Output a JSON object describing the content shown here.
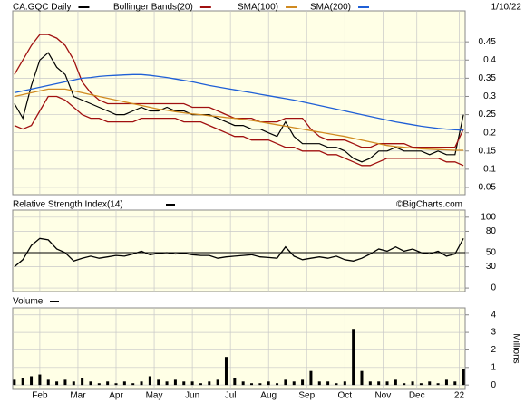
{
  "chart_data": [
    {
      "type": "line",
      "date": "1/10/22",
      "source": "©BigCharts.com",
      "ylim": [
        0.03,
        0.535
      ],
      "yticks": [
        0.05,
        0.1,
        0.15,
        0.2,
        0.25,
        0.3,
        0.35,
        0.4,
        0.45
      ],
      "grid": true,
      "background": "#ffffe6",
      "series": [
        {
          "name": "CA:GQC Daily",
          "color": "#000000",
          "values": [
            0.28,
            0.24,
            0.33,
            0.4,
            0.42,
            0.38,
            0.36,
            0.3,
            0.29,
            0.28,
            0.27,
            0.26,
            0.25,
            0.25,
            0.26,
            0.27,
            0.26,
            0.26,
            0.27,
            0.26,
            0.26,
            0.25,
            0.25,
            0.25,
            0.24,
            0.23,
            0.22,
            0.22,
            0.21,
            0.21,
            0.2,
            0.19,
            0.23,
            0.19,
            0.17,
            0.17,
            0.17,
            0.16,
            0.16,
            0.15,
            0.13,
            0.12,
            0.13,
            0.15,
            0.15,
            0.16,
            0.15,
            0.15,
            0.15,
            0.14,
            0.15,
            0.14,
            0.14,
            0.25
          ]
        },
        {
          "name": "Bollinger Bands(20)",
          "color": "#a01010",
          "upper": [
            0.36,
            0.4,
            0.44,
            0.47,
            0.47,
            0.46,
            0.44,
            0.4,
            0.34,
            0.31,
            0.29,
            0.28,
            0.28,
            0.28,
            0.28,
            0.28,
            0.28,
            0.28,
            0.28,
            0.28,
            0.28,
            0.27,
            0.27,
            0.27,
            0.26,
            0.25,
            0.24,
            0.24,
            0.24,
            0.23,
            0.23,
            0.23,
            0.24,
            0.24,
            0.24,
            0.21,
            0.19,
            0.18,
            0.18,
            0.18,
            0.17,
            0.16,
            0.16,
            0.17,
            0.17,
            0.17,
            0.17,
            0.16,
            0.16,
            0.16,
            0.16,
            0.16,
            0.16,
            0.21
          ],
          "lower": [
            0.22,
            0.21,
            0.22,
            0.26,
            0.3,
            0.3,
            0.29,
            0.27,
            0.25,
            0.24,
            0.24,
            0.23,
            0.23,
            0.23,
            0.23,
            0.24,
            0.24,
            0.24,
            0.24,
            0.24,
            0.23,
            0.23,
            0.23,
            0.22,
            0.21,
            0.2,
            0.19,
            0.19,
            0.18,
            0.18,
            0.18,
            0.17,
            0.16,
            0.16,
            0.15,
            0.15,
            0.15,
            0.14,
            0.14,
            0.13,
            0.12,
            0.11,
            0.11,
            0.12,
            0.13,
            0.13,
            0.13,
            0.13,
            0.13,
            0.13,
            0.13,
            0.12,
            0.12,
            0.11
          ]
        },
        {
          "name": "SMA(100)",
          "color": "#d08a20",
          "values": [
            0.3,
            0.305,
            0.31,
            0.315,
            0.32,
            0.32,
            0.32,
            0.315,
            0.31,
            0.305,
            0.3,
            0.295,
            0.29,
            0.285,
            0.28,
            0.275,
            0.27,
            0.265,
            0.262,
            0.258,
            0.255,
            0.252,
            0.25,
            0.247,
            0.245,
            0.242,
            0.24,
            0.237,
            0.234,
            0.23,
            0.226,
            0.222,
            0.218,
            0.214,
            0.21,
            0.206,
            0.202,
            0.198,
            0.194,
            0.19,
            0.185,
            0.18,
            0.175,
            0.17,
            0.165,
            0.162,
            0.16,
            0.158,
            0.156,
            0.155,
            0.154,
            0.153,
            0.152,
            0.152
          ]
        },
        {
          "name": "SMA(200)",
          "color": "#1f5fd6",
          "values": [
            0.31,
            0.315,
            0.32,
            0.325,
            0.33,
            0.335,
            0.34,
            0.345,
            0.35,
            0.352,
            0.355,
            0.357,
            0.358,
            0.359,
            0.36,
            0.36,
            0.358,
            0.355,
            0.352,
            0.348,
            0.344,
            0.34,
            0.335,
            0.33,
            0.326,
            0.322,
            0.318,
            0.314,
            0.31,
            0.306,
            0.302,
            0.298,
            0.294,
            0.29,
            0.285,
            0.28,
            0.275,
            0.27,
            0.265,
            0.26,
            0.255,
            0.25,
            0.245,
            0.24,
            0.235,
            0.23,
            0.226,
            0.222,
            0.218,
            0.215,
            0.212,
            0.21,
            0.208,
            0.207
          ]
        }
      ]
    },
    {
      "type": "line",
      "title": "Relative Strength Index(14)",
      "ylim": [
        -5,
        110
      ],
      "yticks": [
        0,
        30,
        50,
        80,
        100
      ],
      "grid": true,
      "reference_line": 50,
      "background": "#ffffe6",
      "series": [
        {
          "name": "RSI",
          "color": "#000000",
          "values": [
            30,
            40,
            60,
            70,
            68,
            55,
            50,
            38,
            42,
            45,
            42,
            44,
            46,
            45,
            48,
            52,
            47,
            49,
            50,
            48,
            49,
            47,
            46,
            46,
            42,
            44,
            45,
            46,
            47,
            44,
            43,
            42,
            58,
            45,
            40,
            42,
            44,
            42,
            45,
            40,
            38,
            42,
            48,
            55,
            52,
            58,
            52,
            55,
            50,
            48,
            52,
            45,
            48,
            70
          ]
        }
      ]
    },
    {
      "type": "bar",
      "title": "Volume",
      "y_label": "Millions",
      "ylim": [
        -0.25,
        4.4
      ],
      "yticks": [
        0,
        1,
        2,
        3,
        4
      ],
      "grid": true,
      "color": "#000000",
      "background": "#ffffe6",
      "values": [
        0.3,
        0.4,
        0.5,
        0.6,
        0.3,
        0.2,
        0.3,
        0.2,
        0.4,
        0.2,
        0.1,
        0.2,
        0.1,
        0.2,
        0.1,
        0.2,
        0.5,
        0.3,
        0.2,
        0.3,
        0.2,
        0.2,
        0.1,
        0.2,
        0.3,
        1.6,
        0.4,
        0.2,
        0.1,
        0.1,
        0.2,
        0.1,
        0.3,
        0.2,
        0.3,
        0.8,
        0.2,
        0.2,
        0.1,
        0.2,
        3.2,
        0.8,
        0.2,
        0.2,
        0.2,
        0.3,
        0.1,
        0.2,
        0.1,
        0.2,
        0.1,
        0.3,
        0.2,
        0.9
      ],
      "xlim": [
        -0.2,
        53.2
      ],
      "xticks": [
        {
          "value": 3,
          "label": "Feb"
        },
        {
          "value": 7.5,
          "label": "Mar"
        },
        {
          "value": 12,
          "label": "Apr"
        },
        {
          "value": 16.5,
          "label": "May"
        },
        {
          "value": 21,
          "label": "Jun"
        },
        {
          "value": 25.5,
          "label": "Jul"
        },
        {
          "value": 30,
          "label": "Aug"
        },
        {
          "value": 34.5,
          "label": "Sep"
        },
        {
          "value": 39,
          "label": "Oct"
        },
        {
          "value": 43.5,
          "label": "Nov"
        },
        {
          "value": 47.5,
          "label": "Dec"
        },
        {
          "value": 52.5,
          "label": "22"
        }
      ]
    }
  ]
}
